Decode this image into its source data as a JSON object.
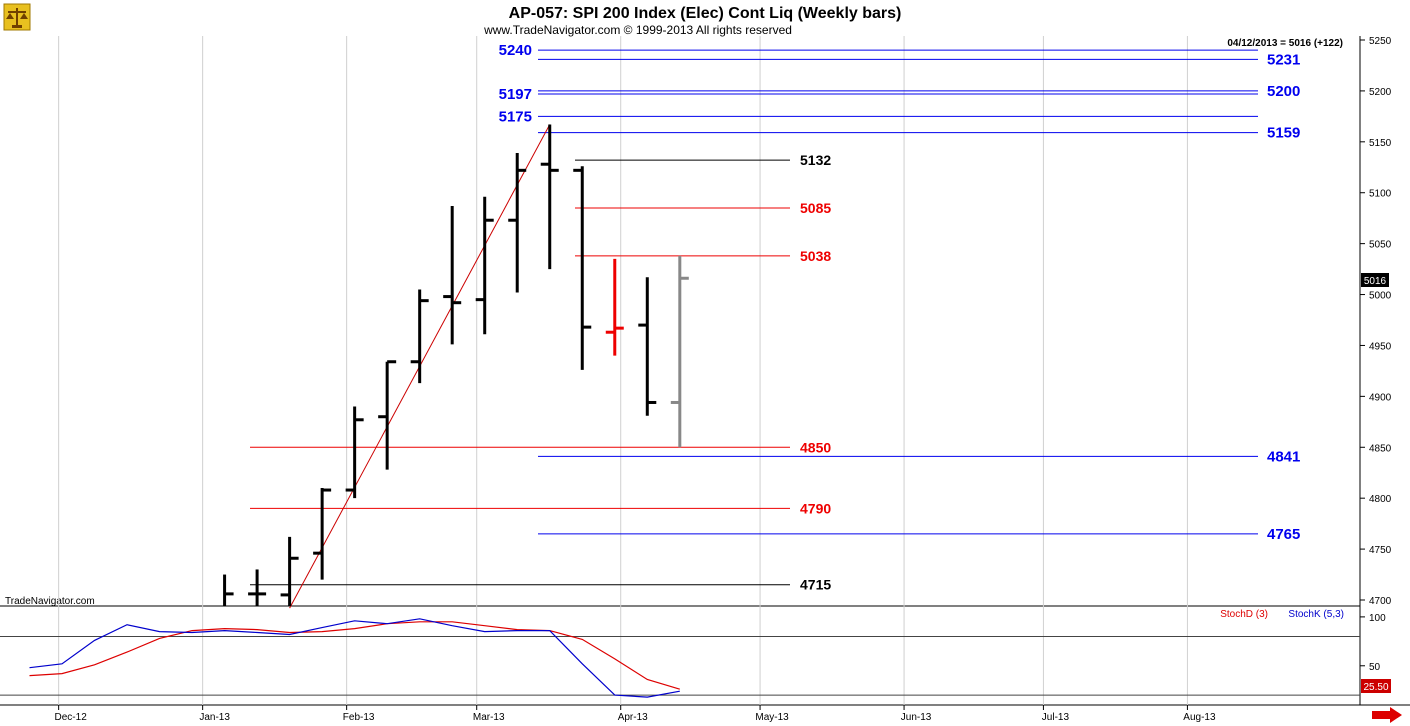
{
  "header": {
    "title": "AP-057:  SPI 200 Index (Elec) Cont Liq  (Weekly bars)",
    "copyright": "www.TradeNavigator.com © 1999-2013 All rights reserved",
    "quote": "04/12/2013 = 5016 (+122)",
    "watermark": "TradeNavigator.com",
    "logo_icon": "scales-logo-icon",
    "scroll_icon": "right-arrow-icon"
  },
  "colors": {
    "blue_level": "#0000ee",
    "red_level": "#ee0000",
    "black_level": "#000000",
    "trend_line": "#cc0000",
    "stoch_d": "#dd0000",
    "stoch_k": "#0000cc",
    "current_price_bg": "#000000",
    "stoch_value_bg": "#cc0000"
  },
  "chart_data": [
    {
      "type": "ohlc",
      "title": "AP-057:  SPI 200 Index (Elec) Cont Liq  (Weekly bars)",
      "ylim": [
        4692,
        5262
      ],
      "y_ticks": [
        4700,
        4750,
        4800,
        4850,
        4900,
        4950,
        5000,
        5050,
        5100,
        5150,
        5200,
        5250
      ],
      "x_ticks": [
        "Dec-12",
        "Jan-13",
        "Feb-13",
        "Mar-13",
        "Apr-13",
        "May-13",
        "Jun-13",
        "Jul-13",
        "Aug-13"
      ],
      "current_price": 5016,
      "bars": [
        {
          "date": "2013-01-04",
          "open": 4690,
          "high": 4725,
          "low": 4690,
          "close": 4706
        },
        {
          "date": "2013-01-11",
          "open": 4706,
          "high": 4730,
          "low": 4690,
          "close": 4706
        },
        {
          "date": "2013-01-18",
          "open": 4705,
          "high": 4762,
          "low": 4690,
          "close": 4741
        },
        {
          "date": "2013-01-25",
          "open": 4746,
          "high": 4810,
          "low": 4720,
          "close": 4808
        },
        {
          "date": "2013-02-01",
          "open": 4808,
          "high": 4890,
          "low": 4800,
          "close": 4877
        },
        {
          "date": "2013-02-08",
          "open": 4880,
          "high": 4934,
          "low": 4828,
          "close": 4934
        },
        {
          "date": "2013-02-15",
          "open": 4934,
          "high": 5005,
          "low": 4913,
          "close": 4994
        },
        {
          "date": "2013-02-22",
          "open": 4998,
          "high": 5087,
          "low": 4951,
          "close": 4992
        },
        {
          "date": "2013-03-01",
          "open": 4995,
          "high": 5096,
          "low": 4961,
          "close": 5073
        },
        {
          "date": "2013-03-08",
          "open": 5073,
          "high": 5139,
          "low": 5002,
          "close": 5122
        },
        {
          "date": "2013-03-15",
          "open": 5128,
          "high": 5167,
          "low": 5025,
          "close": 5122
        },
        {
          "date": "2013-03-22",
          "open": 5122,
          "high": 5126,
          "low": 4926,
          "close": 4968
        },
        {
          "date": "2013-03-29",
          "open": 4963,
          "high": 5035,
          "low": 4940,
          "close": 4967
        },
        {
          "date": "2013-04-05",
          "open": 4970,
          "high": 5017,
          "low": 4881,
          "close": 4894
        },
        {
          "date": "2013-04-12",
          "open": 4894,
          "high": 5038,
          "low": 4850,
          "close": 5016
        }
      ],
      "levels": [
        {
          "value": 5240,
          "color": "blue",
          "label": "5240",
          "label_side": "left"
        },
        {
          "value": 5231,
          "color": "blue",
          "label": "5231",
          "label_side": "right"
        },
        {
          "value": 5200,
          "color": "blue",
          "label": "5200",
          "label_side": "right"
        },
        {
          "value": 5197,
          "color": "blue",
          "label": "5197",
          "label_side": "left"
        },
        {
          "value": 5175,
          "color": "blue",
          "label": "5175",
          "label_side": "left"
        },
        {
          "value": 5159,
          "color": "blue",
          "label": "5159",
          "label_side": "right"
        },
        {
          "value": 5132,
          "color": "black",
          "label": "5132",
          "label_side": "mid"
        },
        {
          "value": 5085,
          "color": "red",
          "label": "5085",
          "label_side": "mid"
        },
        {
          "value": 5038,
          "color": "red",
          "label": "5038",
          "label_side": "mid"
        },
        {
          "value": 4850,
          "color": "red",
          "label": "4850",
          "label_side": "mid"
        },
        {
          "value": 4841,
          "color": "blue",
          "label": "4841",
          "label_side": "right"
        },
        {
          "value": 4790,
          "color": "red",
          "label": "4790",
          "label_side": "mid"
        },
        {
          "value": 4765,
          "color": "blue",
          "label": "4765",
          "label_side": "right"
        },
        {
          "value": 4715,
          "color": "black",
          "label": "4715",
          "label_side": "mid"
        }
      ],
      "trend_line": {
        "from": {
          "date": "2013-01-18",
          "value": 4692
        },
        "to": {
          "date": "2013-03-15",
          "value": 5167
        }
      }
    },
    {
      "type": "line",
      "title": "",
      "ylim": [
        15,
        105
      ],
      "y_ticks": [
        50,
        100
      ],
      "reference_lines": [
        20,
        80
      ],
      "current_value": "25.50",
      "series": [
        {
          "name": "StochD (3)",
          "color": "red",
          "values": [
            {
              "date": "2012-11-23",
              "value": 40
            },
            {
              "date": "2012-11-30",
              "value": 42
            },
            {
              "date": "2012-12-07",
              "value": 51
            },
            {
              "date": "2012-12-14",
              "value": 64
            },
            {
              "date": "2012-12-21",
              "value": 78
            },
            {
              "date": "2012-12-28",
              "value": 86
            },
            {
              "date": "2013-01-04",
              "value": 88
            },
            {
              "date": "2013-01-11",
              "value": 87
            },
            {
              "date": "2013-01-18",
              "value": 84
            },
            {
              "date": "2013-01-25",
              "value": 85
            },
            {
              "date": "2013-02-01",
              "value": 88
            },
            {
              "date": "2013-02-08",
              "value": 93
            },
            {
              "date": "2013-02-15",
              "value": 95
            },
            {
              "date": "2013-02-22",
              "value": 95
            },
            {
              "date": "2013-03-01",
              "value": 91
            },
            {
              "date": "2013-03-08",
              "value": 87
            },
            {
              "date": "2013-03-15",
              "value": 86
            },
            {
              "date": "2013-03-22",
              "value": 77
            },
            {
              "date": "2013-03-29",
              "value": 57
            },
            {
              "date": "2013-04-05",
              "value": 36
            },
            {
              "date": "2013-04-12",
              "value": 26
            }
          ]
        },
        {
          "name": "StochK (5,3)",
          "color": "blue",
          "values": [
            {
              "date": "2012-11-23",
              "value": 48
            },
            {
              "date": "2012-11-30",
              "value": 52
            },
            {
              "date": "2012-12-07",
              "value": 76
            },
            {
              "date": "2012-12-14",
              "value": 92
            },
            {
              "date": "2012-12-21",
              "value": 85
            },
            {
              "date": "2012-12-28",
              "value": 84
            },
            {
              "date": "2013-01-04",
              "value": 86
            },
            {
              "date": "2013-01-11",
              "value": 84
            },
            {
              "date": "2013-01-18",
              "value": 82
            },
            {
              "date": "2013-01-25",
              "value": 89
            },
            {
              "date": "2013-02-01",
              "value": 96
            },
            {
              "date": "2013-02-08",
              "value": 93
            },
            {
              "date": "2013-02-15",
              "value": 98
            },
            {
              "date": "2013-02-22",
              "value": 91
            },
            {
              "date": "2013-03-01",
              "value": 85
            },
            {
              "date": "2013-03-08",
              "value": 86
            },
            {
              "date": "2013-03-15",
              "value": 86
            },
            {
              "date": "2013-03-22",
              "value": 52
            },
            {
              "date": "2013-03-29",
              "value": 20
            },
            {
              "date": "2013-04-05",
              "value": 18
            },
            {
              "date": "2013-04-12",
              "value": 24
            }
          ]
        }
      ]
    }
  ]
}
